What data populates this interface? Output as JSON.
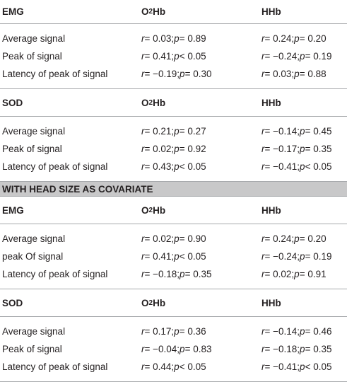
{
  "blocks": [
    {
      "header": {
        "label": "EMG",
        "col2": "O",
        "col2_sub": "2",
        "col2_tail": "Hb",
        "col3": "HHb"
      },
      "rows": [
        {
          "label": "Average signal",
          "o2hb": "r = 0.03; p = 0.89",
          "hhb": "r = 0.24; p = 0.20"
        },
        {
          "label": "Peak of signal",
          "o2hb": "r = 0.41; p < 0.05",
          "hhb": "r = −0.24; p = 0.19"
        },
        {
          "label": "Latency of peak of signal",
          "o2hb": "r = −0.19; p = 0.30",
          "hhb": "r = 0.03; p = 0.88"
        }
      ]
    },
    {
      "header": {
        "label": "SOD",
        "col2": "O",
        "col2_sub": "2",
        "col2_tail": "Hb",
        "col3": "HHb"
      },
      "rows": [
        {
          "label": "Average signal",
          "o2hb": "r = 0.21; p = 0.27",
          "hhb": "r = −0.14; p = 0.45"
        },
        {
          "label": "Peak of signal",
          "o2hb": "r = 0.02; p = 0.92",
          "hhb": "r = −0.17; p = 0.35"
        },
        {
          "label": "Latency of peak of signal",
          "o2hb": "r = 0.43; p < 0.05",
          "hhb": "r = −0.41; p < 0.05"
        }
      ]
    },
    {
      "header": {
        "label": "EMG",
        "col2": "O",
        "col2_sub": "2",
        "col2_tail": "Hb",
        "col3": "HHb"
      },
      "rows": [
        {
          "label": "Average signal",
          "o2hb": "r = 0.02; p = 0.90",
          "hhb": "r = 0.24; p = 0.20"
        },
        {
          "label": "peak Of signal",
          "o2hb": "r = 0.41; p < 0.05",
          "hhb": "r = −0.24; p = 0.19"
        },
        {
          "label": "Latency of peak of signal",
          "o2hb": "r = −0.18; p = 0.35",
          "hhb": "r = 0.02; p = 0.91"
        }
      ]
    },
    {
      "header": {
        "label": "SOD",
        "col2": "O",
        "col2_sub": "2",
        "col2_tail": "Hb",
        "col3": "HHb"
      },
      "rows": [
        {
          "label": "Average signal",
          "o2hb": "r = 0.17; p = 0.36",
          "hhb": "r = −0.14; p = 0.46"
        },
        {
          "label": "Peak of signal",
          "o2hb": "r = −0.04; p = 0.83",
          "hhb": "r = −0.18; p = 0.35"
        },
        {
          "label": "Latency of peak of signal",
          "o2hb": "r = 0.44; p < 0.05",
          "hhb": "r = −0.41; p < 0.05"
        }
      ]
    }
  ],
  "covariate_band": "WITH HEAD SIZE AS COVARIATE",
  "colors": {
    "rule": "#a7a9ac",
    "band": "#c8c8c9",
    "text": "#231f20"
  }
}
